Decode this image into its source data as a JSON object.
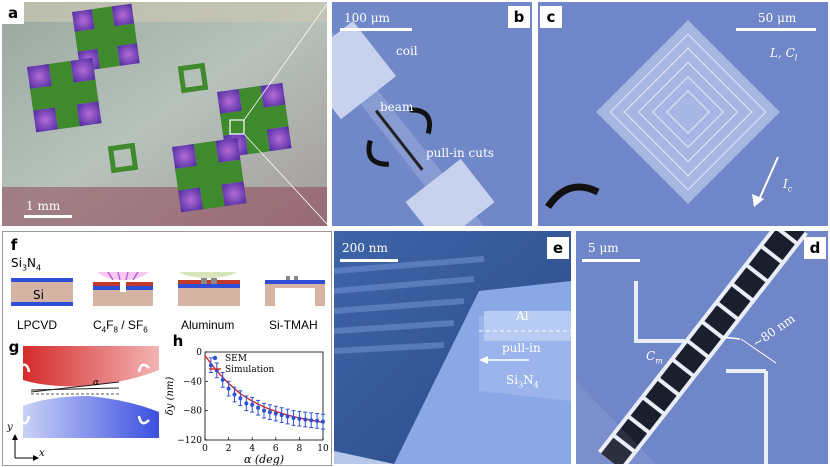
{
  "panel_a": {
    "tag": "a",
    "scale": "1 mm"
  },
  "panel_b": {
    "tag": "b",
    "scale": "100 μm",
    "coil": "coil",
    "beam": "beam",
    "pullin_cuts": "pull-in cuts"
  },
  "panel_c": {
    "tag": "c",
    "scale": "50 μm",
    "lc": "L, C",
    "lc_sub": "l",
    "ic": "I",
    "ic_sub": "c"
  },
  "panel_d": {
    "tag": "d",
    "scale": "5 μm",
    "cm": "C",
    "cm_sub": "m",
    "gap": "~80 nm"
  },
  "panel_e": {
    "tag": "e",
    "scale": "200 nm",
    "al": "Al",
    "pullin": "pull-in",
    "sin": "Si",
    "sin_sub3": "3",
    "sin_n": "N",
    "sin_sub4": "4"
  },
  "panel_f": {
    "tag": "f",
    "sin_label": "Si",
    "sin_sub3": "3",
    "sin_n": "N",
    "sin_sub4": "4",
    "si_label": "Si",
    "steps": [
      "LPCVD",
      "C",
      "F",
      "/ SF",
      "Aluminum",
      "Si-TMAH"
    ],
    "step2_sub4": "4",
    "step2_sub8": "8",
    "step2_sub6": "6"
  },
  "panel_g": {
    "tag": "g",
    "alpha": "α",
    "y_axis": "y",
    "x_axis": "x"
  },
  "panel_h": {
    "tag": "h",
    "legend_sem": "SEM",
    "legend_sim": "Simulation",
    "ylabel": "δy (nm)",
    "xlabel": "α (deg)"
  },
  "chart_data": {
    "type": "scatter",
    "xlabel": "α (deg)",
    "ylabel": "δy (nm)",
    "xlim": [
      0,
      10
    ],
    "ylim": [
      -120,
      0
    ],
    "x_ticks": [
      0,
      2,
      4,
      6,
      8,
      10
    ],
    "y_ticks": [
      0,
      -40,
      -80,
      -120
    ],
    "y_tick_labels": [
      "0",
      "−40",
      "−80",
      "−120"
    ],
    "series": [
      {
        "name": "SEM",
        "x": [
          0.5,
          1.0,
          1.5,
          2.0,
          2.5,
          3.0,
          3.5,
          4.0,
          4.5,
          5.0,
          5.5,
          6.0,
          6.5,
          7.0,
          7.5,
          8.0,
          8.5,
          9.0,
          9.5,
          10.0
        ],
        "y": [
          -18,
          -25,
          -38,
          -50,
          -58,
          -63,
          -70,
          -72,
          -76,
          -80,
          -82,
          -84,
          -86,
          -88,
          -90,
          -91,
          -92,
          -93,
          -94,
          -95
        ],
        "err": [
          10,
          10,
          10,
          10,
          10,
          10,
          10,
          10,
          10,
          10,
          10,
          10,
          10,
          10,
          10,
          10,
          10,
          10,
          10,
          10
        ],
        "color": "#2f4fd8"
      },
      {
        "name": "Simulation",
        "x": [
          0,
          1,
          2,
          3,
          4,
          5,
          6,
          7,
          8,
          9,
          10
        ],
        "y": [
          -5,
          -26,
          -43,
          -57,
          -67,
          -75,
          -81,
          -86,
          -90,
          -93,
          -96
        ],
        "color": "#d62828"
      }
    ]
  },
  "colors": {
    "sem_blue": "#2f4fd8",
    "sim_red": "#d62828",
    "sem_bg": "#6f86c8"
  }
}
